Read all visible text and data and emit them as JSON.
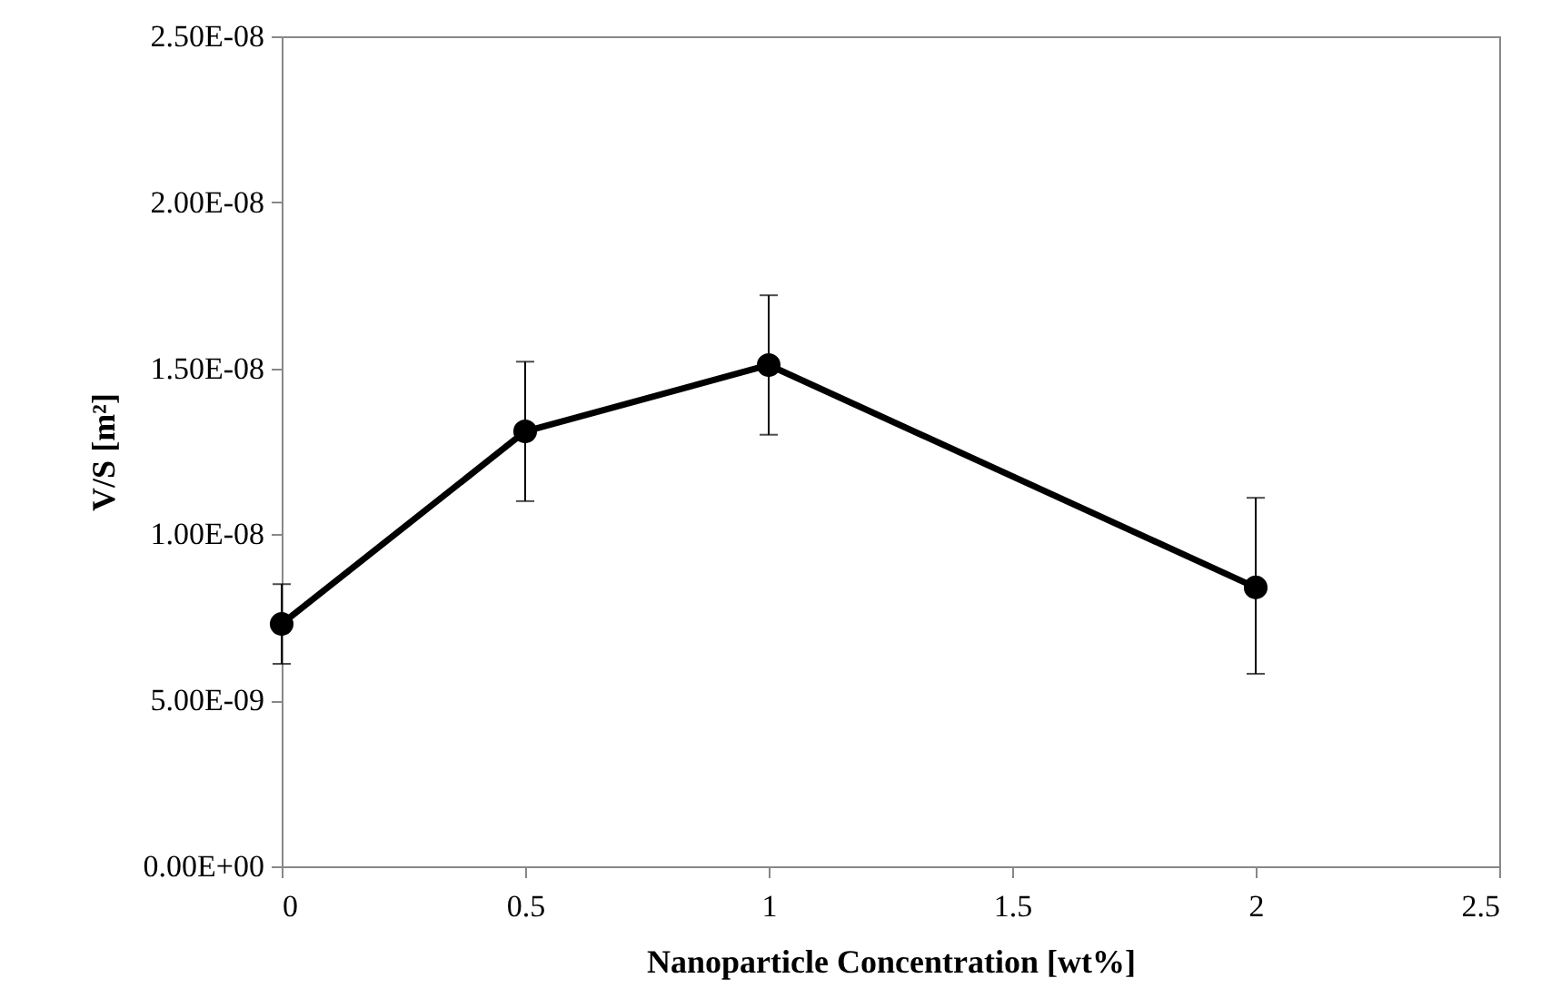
{
  "chart_data": {
    "type": "line",
    "xlabel": "Nanoparticle Concentration  [wt%]",
    "ylabel": "V/S [m²]",
    "x": [
      0,
      0.5,
      1,
      2
    ],
    "series": [
      {
        "color": "#000000",
        "values": [
          7.3e-09,
          1.31e-08,
          1.51e-08,
          8.4e-09
        ],
        "errors": [
          [
            6.1e-09,
            8.5e-09
          ],
          [
            1.1e-08,
            1.52e-08
          ],
          [
            1.3e-08,
            1.72e-08
          ],
          [
            5.8e-09,
            1.11e-08
          ]
        ]
      }
    ],
    "xlim": [
      0,
      2.5
    ],
    "xticks": [
      0,
      0.5,
      1,
      1.5,
      2,
      2.5
    ],
    "ylim": [
      0,
      2.5e-08
    ],
    "yticks": [
      {
        "value": 0,
        "label": "0.00E+00"
      },
      {
        "value": 5e-09,
        "label": "5.00E-09"
      },
      {
        "value": 1e-08,
        "label": "1.00E-08"
      },
      {
        "value": 1.5e-08,
        "label": "1.50E-08"
      },
      {
        "value": 2e-08,
        "label": "2.00E-08"
      },
      {
        "value": 2.5e-08,
        "label": "2.50E-08"
      }
    ],
    "grid": false,
    "marker": "circle",
    "line_style": "solid"
  }
}
